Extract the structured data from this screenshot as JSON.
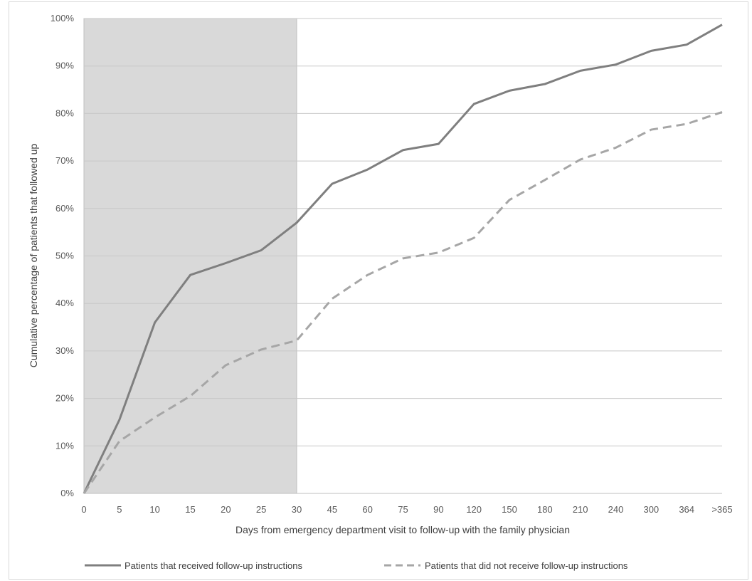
{
  "chart_data": {
    "type": "line",
    "title": "",
    "xlabel": "Days from emergency department visit to follow-up with the family physician",
    "ylabel": "Cumulative percentage of patients that followed up",
    "categories": [
      "0",
      "5",
      "10",
      "15",
      "20",
      "25",
      "30",
      "45",
      "60",
      "75",
      "90",
      "120",
      "150",
      "180",
      "210",
      "240",
      "300",
      "364",
      ">365"
    ],
    "y_ticks": [
      "0%",
      "10%",
      "20%",
      "30%",
      "40%",
      "50%",
      "60%",
      "70%",
      "80%",
      "90%",
      "100%"
    ],
    "ylim": [
      0,
      100
    ],
    "y_unit": "%",
    "grid": "horizontal",
    "shaded_region": {
      "from": "0",
      "to": "30",
      "color": "#d9d9d9"
    },
    "legend_position": "bottom",
    "series": [
      {
        "name": "Patients that received follow-up instructions",
        "style": "solid",
        "color": "#7f7f7f",
        "values": [
          0,
          15.5,
          36,
          46,
          48.5,
          51.2,
          57,
          65.2,
          68.2,
          72.3,
          73.6,
          82,
          84.8,
          86.2,
          89,
          90.3,
          93.2,
          94.5,
          98.7
        ]
      },
      {
        "name": "Patients that did not receive follow-up instructions",
        "style": "dashed",
        "color": "#a6a6a6",
        "values": [
          0,
          11,
          16,
          20.5,
          27,
          30.3,
          32.2,
          41,
          46,
          49.5,
          50.7,
          53.8,
          61.8,
          66,
          70.3,
          72.8,
          76.6,
          77.8,
          80.3
        ]
      }
    ]
  }
}
